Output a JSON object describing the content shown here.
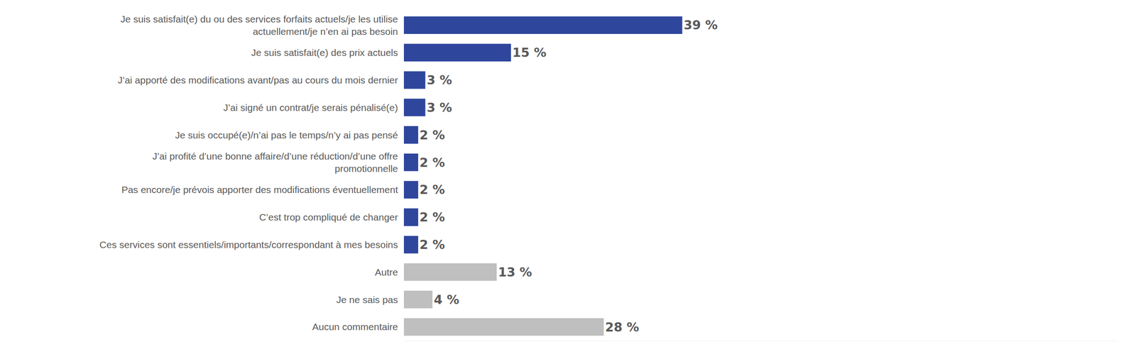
{
  "chart_data": {
    "type": "bar",
    "orientation": "horizontal",
    "categories": [
      "Je suis satisfait(e) du ou des services forfaits actuels/je les utilise actuellement/je n’en ai pas besoin",
      "Je suis satisfait(e) des prix actuels",
      "J’ai apporté des modifications avant/pas au cours du mois dernier",
      "J’ai signé un contrat/je serais pénalisé(e)",
      "Je suis occupé(e)/n’ai pas le temps/n’y ai pas pensé",
      "J’ai profité d’une bonne affaire/d’une réduction/d’une offre promotionnelle",
      "Pas encore/je prévois apporter des modifications éventuellement",
      "C’est trop compliqué de changer",
      "Ces services sont essentiels/importants/correspondant à mes besoins",
      "Autre",
      "Je ne sais pas",
      "Aucun commentaire"
    ],
    "values": [
      39,
      15,
      3,
      3,
      2,
      2,
      2,
      2,
      2,
      13,
      4,
      28
    ],
    "value_labels": [
      "39 %",
      "15 %",
      "3 %",
      "3 %",
      "2 %",
      "2 %",
      "2 %",
      "2 %",
      "2 %",
      "13 %",
      "4 %",
      "28 %"
    ],
    "colors": [
      "#2E469C",
      "#2E469C",
      "#2E469C",
      "#2E469C",
      "#2E469C",
      "#2E469C",
      "#2E469C",
      "#2E469C",
      "#2E469C",
      "#BFBFBF",
      "#BFBFBF",
      "#BFBFBF"
    ],
    "xlim": [
      0,
      100
    ],
    "grid": false,
    "data_labels": true,
    "tick_labels": "y"
  }
}
